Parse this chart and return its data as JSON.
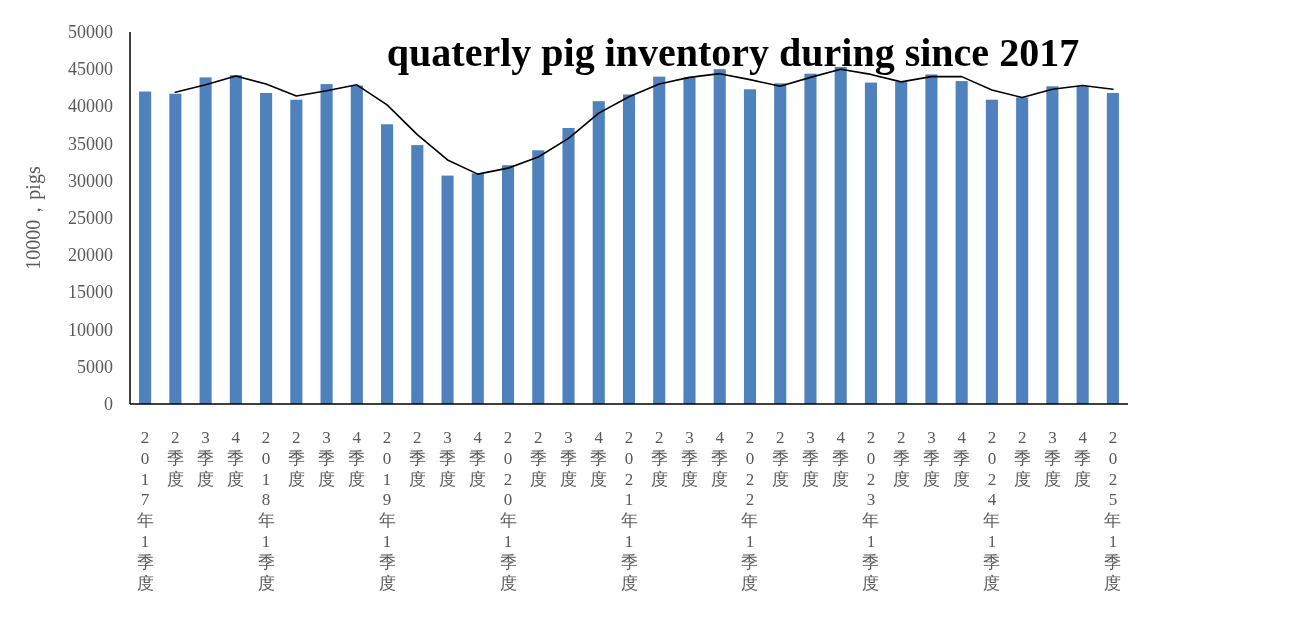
{
  "chart_data": {
    "type": "bar",
    "title": "quaterly pig inventory during since 2017",
    "ylabel": "10000，pigs",
    "categories": [
      "2017年1季度",
      "2季度",
      "3季度",
      "4季度",
      "2018年1季度",
      "2季度",
      "3季度",
      "4季度",
      "2019年1季度",
      "2季度",
      "3季度",
      "4季度",
      "2020年1季度",
      "2季度",
      "3季度",
      "4季度",
      "2021年1季度",
      "2季度",
      "3季度",
      "4季度",
      "2022年1季度",
      "2季度",
      "3季度",
      "4季度",
      "2023年1季度",
      "2季度",
      "3季度",
      "4季度",
      "2024年1季度",
      "2季度",
      "3季度",
      "4季度",
      "2025年1季度"
    ],
    "series": [
      {
        "color": "#4f81bd",
        "values": [
          42000,
          41700,
          43900,
          44200,
          41800,
          40900,
          43000,
          42800,
          37600,
          34800,
          30700,
          31000,
          32100,
          34100,
          37100,
          40700,
          41600,
          44000,
          43900,
          45000,
          42300,
          43100,
          44400,
          45300,
          43200,
          43300,
          44300,
          43400,
          40900,
          41200,
          42700,
          42700,
          41800
        ]
      },
      {
        "type": "line",
        "color": "#000000",
        "values": [
          null,
          41900,
          42900,
          44100,
          43000,
          41400,
          42100,
          42900,
          40200,
          36200,
          32800,
          30900,
          31700,
          33200,
          35700,
          39100,
          41300,
          43000,
          43900,
          44400,
          43600,
          42700,
          43900,
          45000,
          44300,
          43300,
          44000,
          44000,
          42200,
          41200,
          42300,
          42800,
          42300
        ]
      }
    ],
    "ylim": [
      0,
      50000
    ],
    "yticks": [
      0,
      5000,
      10000,
      15000,
      20000,
      25000,
      30000,
      35000,
      40000,
      45000,
      50000
    ]
  }
}
